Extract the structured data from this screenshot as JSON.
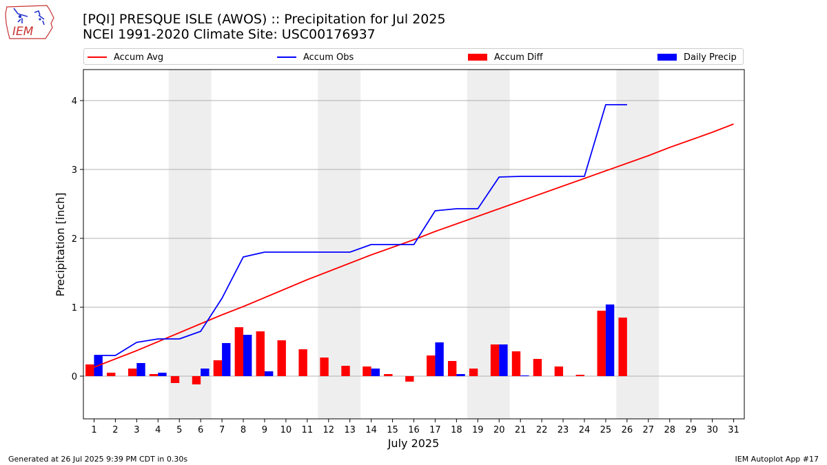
{
  "header": {
    "title_line1": "[PQI] PRESQUE ISLE (AWOS) :: Precipitation for Jul 2025",
    "title_line2": "NCEI 1991-2020 Climate Site: USC00176937",
    "logo_text": "IEM"
  },
  "footer": {
    "generated": "Generated at 26 Jul 2025 9:39 PM CDT in 0.30s",
    "app": "IEM Autoplot App #17"
  },
  "colors": {
    "accum_avg": "#ff0000",
    "accum_obs": "#0000ff",
    "accum_diff": "#ff0000",
    "daily_precip": "#0000ff",
    "weekend_shade": "#eeeeee",
    "grid": "#b0b0b0"
  },
  "chart_data": {
    "type": "bar",
    "xlabel": "July 2025",
    "ylabel": "Precipitation [inch]",
    "xlim": [
      0.5,
      31.5
    ],
    "ylim": [
      -0.62,
      4.45
    ],
    "yticks": [
      0,
      1,
      2,
      3,
      4
    ],
    "grid": "horizontal",
    "legend_position": "top",
    "days": [
      1,
      2,
      3,
      4,
      5,
      6,
      7,
      8,
      9,
      10,
      11,
      12,
      13,
      14,
      15,
      16,
      17,
      18,
      19,
      20,
      21,
      22,
      23,
      24,
      25,
      26,
      27,
      28,
      29,
      30,
      31
    ],
    "weekends": [
      [
        5,
        6
      ],
      [
        12,
        13
      ],
      [
        19,
        20
      ],
      [
        26,
        27
      ]
    ],
    "series": [
      {
        "name": "Accum Avg",
        "kind": "line",
        "x": [
          1,
          2,
          3,
          4,
          5,
          6,
          7,
          8,
          9,
          10,
          11,
          12,
          13,
          14,
          15,
          16,
          17,
          18,
          19,
          20,
          21,
          22,
          23,
          24,
          25,
          26,
          27,
          28,
          29,
          30,
          31
        ],
        "values": [
          0.13,
          0.25,
          0.37,
          0.5,
          0.63,
          0.76,
          0.89,
          1.01,
          1.14,
          1.27,
          1.4,
          1.52,
          1.64,
          1.76,
          1.87,
          1.98,
          2.1,
          2.21,
          2.32,
          2.43,
          2.54,
          2.65,
          2.76,
          2.87,
          2.98,
          3.09,
          3.2,
          3.32,
          3.43,
          3.54,
          3.66
        ]
      },
      {
        "name": "Accum Obs",
        "kind": "line",
        "x": [
          1,
          2,
          3,
          4,
          5,
          6,
          7,
          8,
          9,
          10,
          11,
          12,
          13,
          14,
          15,
          16,
          17,
          18,
          19,
          20,
          21,
          22,
          23,
          24,
          25,
          26
        ],
        "values": [
          0.3,
          0.3,
          0.49,
          0.54,
          0.54,
          0.65,
          1.13,
          1.73,
          1.8,
          1.8,
          1.8,
          1.8,
          1.8,
          1.91,
          1.91,
          1.91,
          2.4,
          2.43,
          2.43,
          2.89,
          2.9,
          2.9,
          2.9,
          2.9,
          3.94,
          3.94
        ]
      },
      {
        "name": "Accum Diff",
        "kind": "bar",
        "x": [
          1,
          2,
          3,
          4,
          5,
          6,
          7,
          8,
          9,
          10,
          11,
          12,
          13,
          14,
          15,
          16,
          17,
          18,
          19,
          20,
          21,
          22,
          23,
          24,
          25,
          26
        ],
        "values": [
          0.17,
          0.05,
          0.11,
          0.03,
          -0.1,
          -0.12,
          0.23,
          0.71,
          0.65,
          0.52,
          0.39,
          0.27,
          0.15,
          0.14,
          0.03,
          -0.08,
          0.3,
          0.22,
          0.11,
          0.46,
          0.36,
          0.25,
          0.14,
          0.02,
          0.95,
          0.85
        ]
      },
      {
        "name": "Daily Precip",
        "kind": "bar",
        "x": [
          1,
          2,
          3,
          4,
          5,
          6,
          7,
          8,
          9,
          10,
          11,
          12,
          13,
          14,
          15,
          16,
          17,
          18,
          19,
          20,
          21,
          22,
          23,
          24,
          25,
          26
        ],
        "values": [
          0.3,
          0,
          0.19,
          0.05,
          0,
          0.11,
          0.48,
          0.6,
          0.07,
          0,
          0,
          0,
          0,
          0.11,
          0,
          0,
          0.49,
          0.03,
          0,
          0.46,
          0.01,
          0,
          0,
          0,
          1.04,
          0
        ]
      }
    ]
  }
}
